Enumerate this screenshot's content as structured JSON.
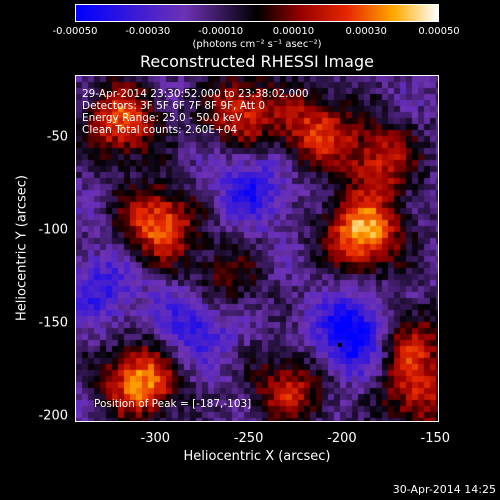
{
  "colorbar": {
    "ticks": [
      "-0.00050",
      "-0.00030",
      "-0.00010",
      "0.00010",
      "0.00030",
      "0.00050"
    ],
    "tick_values": [
      -0.0005,
      -0.0003,
      -0.0001,
      0.0001,
      0.0003,
      0.0005
    ],
    "range": [
      -0.0005,
      0.0005
    ],
    "unit": "(photons cm⁻² s⁻¹ asec⁻²)"
  },
  "title": "Reconstructed RHESSI Image",
  "info": {
    "time": "29-Apr-2014 23:30:52.000 to 23:38:02.000",
    "detectors": "Detectors: 3F 5F 6F 7F 8F 9F, Att 0",
    "energy": "Energy Range: 25.0 - 50.0 keV",
    "clean": "Clean    Total counts: 2.60E+04",
    "peak": "Position of Peak = [-187,-103]"
  },
  "axes": {
    "xlabel": "Heliocentric X (arcsec)",
    "ylabel": "Heliocentric Y (arcsec)",
    "xticks": [
      "-300",
      "-250",
      "-200",
      "-150"
    ],
    "xtick_values": [
      -300,
      -250,
      -200,
      -150
    ],
    "yticks": [
      "-50",
      "-100",
      "-150",
      "-200"
    ],
    "ytick_values": [
      -50,
      -100,
      -150,
      -200
    ],
    "xrange": [
      -343,
      -148
    ],
    "yrange": [
      -17,
      -203
    ]
  },
  "image_blobs": [
    {
      "x": -320,
      "y": -40,
      "amp": 1.0
    },
    {
      "x": -300,
      "y": -95,
      "amp": 1.1
    },
    {
      "x": -310,
      "y": -180,
      "amp": 1.2
    },
    {
      "x": -255,
      "y": -35,
      "amp": 0.9
    },
    {
      "x": -215,
      "y": -45,
      "amp": 0.9
    },
    {
      "x": -180,
      "y": -60,
      "amp": 0.8
    },
    {
      "x": -190,
      "y": -100,
      "amp": 1.3
    },
    {
      "x": -165,
      "y": -160,
      "amp": 0.8
    },
    {
      "x": -230,
      "y": -185,
      "amp": 0.8
    },
    {
      "x": -160,
      "y": -190,
      "amp": 0.7
    },
    {
      "x": -265,
      "y": -125,
      "amp": 0.5
    },
    {
      "x": -195,
      "y": -155,
      "amp": -1.0
    },
    {
      "x": -280,
      "y": -150,
      "amp": -0.6
    },
    {
      "x": -250,
      "y": -75,
      "amp": -0.6
    },
    {
      "x": -330,
      "y": -130,
      "amp": -0.5
    }
  ],
  "timestamp": "30-Apr-2014 14:25"
}
